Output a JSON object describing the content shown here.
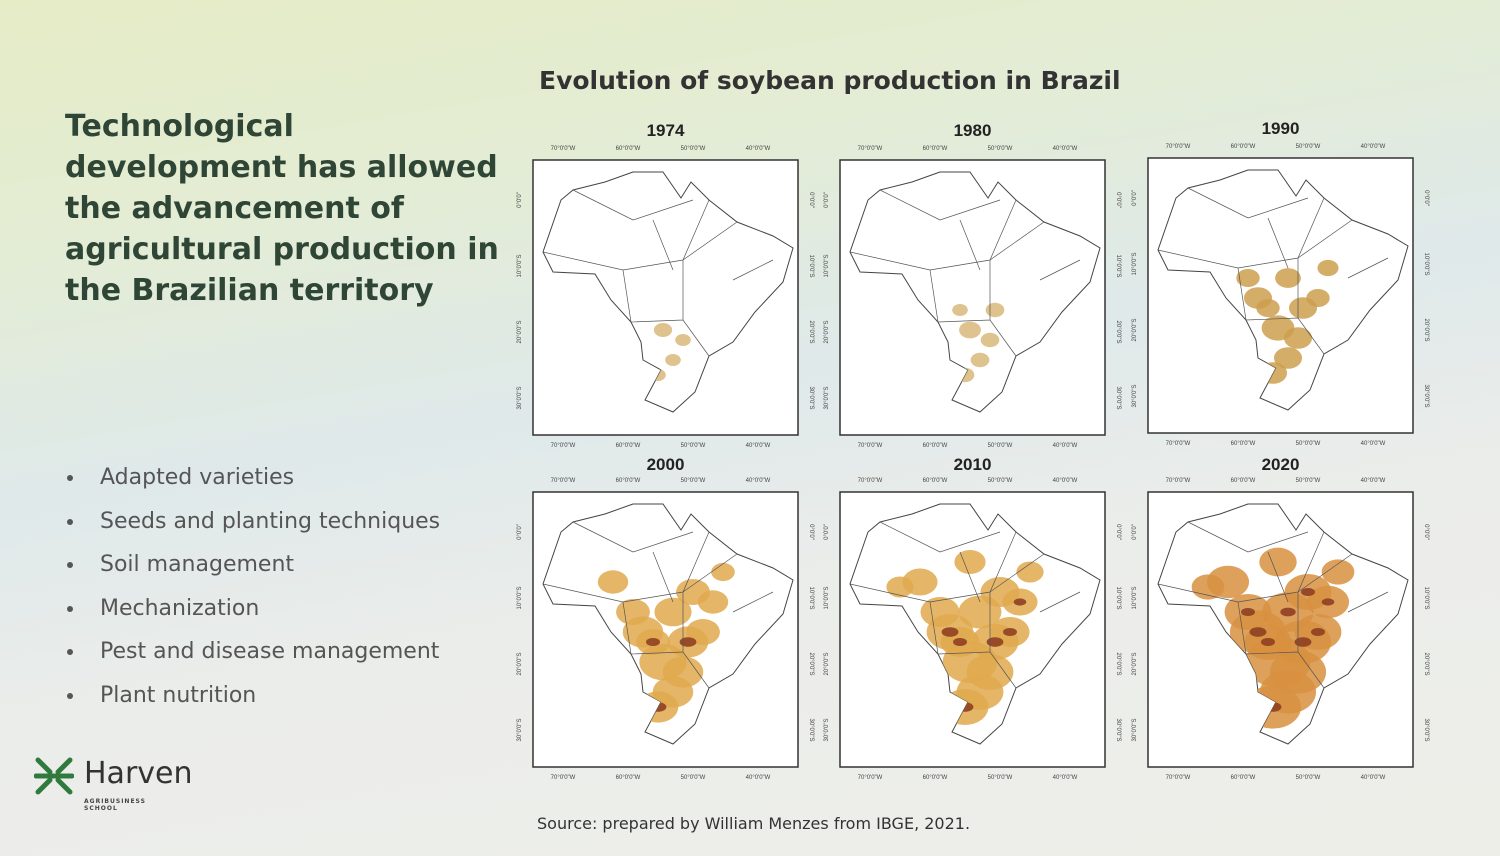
{
  "heading": "Technological development has allowed the advancement of agricultural production in the Brazilian territory",
  "bullets": [
    "Adapted varieties",
    "Seeds and planting techniques",
    "Soil management",
    "Mechanization",
    "Pest and disease management",
    "Plant nutrition"
  ],
  "figure": {
    "title": "Evolution of soybean production in Brazil",
    "panels": [
      "1974",
      "1980",
      "1990",
      "2000",
      "2010",
      "2020"
    ],
    "x_tick_labels": [
      "70°0'0\"W",
      "60°0'0\"W",
      "50°0'0\"W",
      "40°0'0\"W"
    ],
    "y_tick_labels": [
      "0°0'0\"",
      "10°0'0\"S",
      "20°0'0\"S",
      "30°0'0\"S"
    ],
    "source": "Source: prepared by William Menzes from IBGE, 2021."
  },
  "logo": {
    "name": "Harven",
    "tagline": "AGRIBUSINESS SCHOOL"
  }
}
